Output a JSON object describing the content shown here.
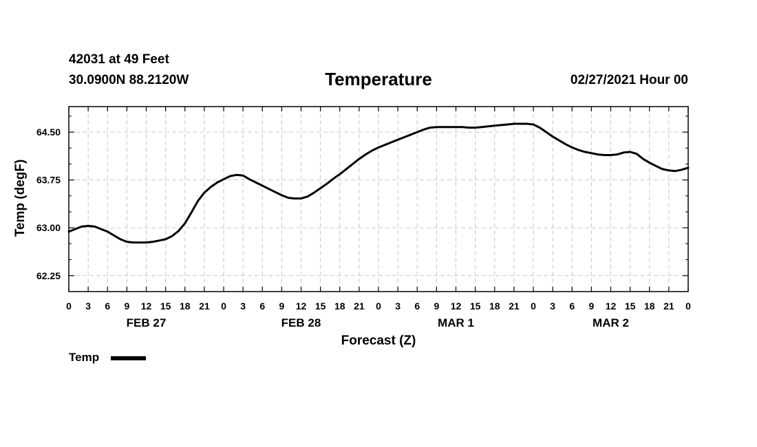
{
  "header": {
    "station": "42031 at 49 Feet",
    "coords": "30.0900N 88.2120W",
    "title": "Temperature",
    "forecast_time": "02/27/2021 Hour 00"
  },
  "chart_data": {
    "type": "line",
    "title": "Temperature",
    "xlabel": "Forecast (Z)",
    "ylabel": "Temp (degF)",
    "ylim": [
      62.0,
      64.9
    ],
    "yticks": [
      62.25,
      63.0,
      63.75,
      64.5
    ],
    "ytick_labels": [
      "62.25",
      "63.00",
      "63.75",
      "64.50"
    ],
    "xlim": [
      0,
      96
    ],
    "xticks": [
      0,
      3,
      6,
      9,
      12,
      15,
      18,
      21,
      24,
      27,
      30,
      33,
      36,
      39,
      42,
      45,
      48,
      51,
      54,
      57,
      60,
      63,
      66,
      69,
      72,
      75,
      78,
      81,
      84,
      87,
      90,
      93,
      96
    ],
    "xtick_labels": [
      "0",
      "3",
      "6",
      "9",
      "12",
      "15",
      "18",
      "21",
      "0",
      "3",
      "6",
      "9",
      "12",
      "15",
      "18",
      "21",
      "0",
      "3",
      "6",
      "9",
      "12",
      "15",
      "18",
      "21",
      "0",
      "3",
      "6",
      "9",
      "12",
      "15",
      "18",
      "21",
      "0"
    ],
    "day_labels": [
      {
        "label": "FEB 27",
        "x": 12
      },
      {
        "label": "FEB 28",
        "x": 36
      },
      {
        "label": "MAR 1",
        "x": 60
      },
      {
        "label": "MAR 2",
        "x": 84
      }
    ],
    "grid": true,
    "series": [
      {
        "name": "Temp",
        "color": "#000000",
        "x": [
          0,
          1,
          2,
          3,
          4,
          5,
          6,
          7,
          8,
          9,
          10,
          11,
          12,
          13,
          14,
          15,
          16,
          17,
          18,
          19,
          20,
          21,
          22,
          23,
          24,
          25,
          26,
          27,
          28,
          29,
          30,
          31,
          32,
          33,
          34,
          35,
          36,
          37,
          38,
          39,
          40,
          41,
          42,
          43,
          44,
          45,
          46,
          47,
          48,
          49,
          50,
          51,
          52,
          53,
          54,
          55,
          56,
          57,
          58,
          59,
          60,
          61,
          62,
          63,
          64,
          65,
          66,
          67,
          68,
          69,
          70,
          71,
          72,
          73,
          74,
          75,
          76,
          77,
          78,
          79,
          80,
          81,
          82,
          83,
          84,
          85,
          86,
          87,
          88,
          89,
          90,
          91,
          92,
          93,
          94,
          95,
          96
        ],
        "values": [
          62.94,
          62.98,
          63.02,
          63.03,
          63.02,
          62.98,
          62.94,
          62.88,
          62.82,
          62.78,
          62.77,
          62.77,
          62.77,
          62.78,
          62.8,
          62.82,
          62.87,
          62.95,
          63.07,
          63.24,
          63.42,
          63.55,
          63.64,
          63.71,
          63.76,
          63.81,
          63.83,
          63.82,
          63.76,
          63.71,
          63.66,
          63.61,
          63.56,
          63.51,
          63.47,
          63.46,
          63.46,
          63.49,
          63.55,
          63.62,
          63.69,
          63.77,
          63.84,
          63.92,
          64.0,
          64.08,
          64.15,
          64.21,
          64.26,
          64.3,
          64.34,
          64.38,
          64.42,
          64.46,
          64.5,
          64.54,
          64.57,
          64.58,
          64.58,
          64.58,
          64.58,
          64.58,
          64.57,
          64.57,
          64.58,
          64.59,
          64.6,
          64.61,
          64.62,
          64.63,
          64.63,
          64.63,
          64.62,
          64.57,
          64.5,
          64.43,
          64.37,
          64.31,
          64.26,
          64.22,
          64.19,
          64.17,
          64.15,
          64.14,
          64.14,
          64.15,
          64.18,
          64.19,
          64.16,
          64.08,
          64.02,
          63.97,
          63.92,
          63.9,
          63.89,
          63.91,
          63.94
        ]
      }
    ]
  }
}
